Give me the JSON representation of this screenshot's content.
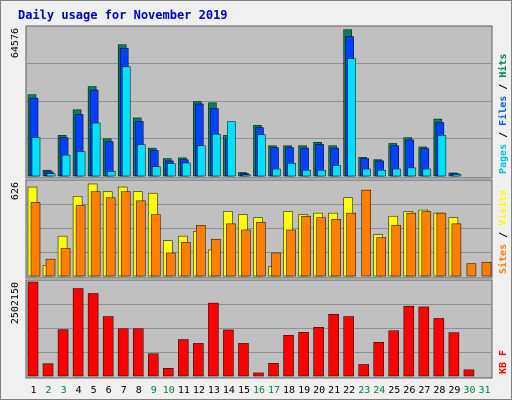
{
  "chart_data": {
    "type": "bar",
    "title": "Daily usage for November 2019",
    "categories": [
      "1",
      "2",
      "3",
      "4",
      "5",
      "6",
      "7",
      "8",
      "9",
      "10",
      "11",
      "12",
      "13",
      "14",
      "15",
      "16",
      "17",
      "18",
      "19",
      "20",
      "21",
      "22",
      "23",
      "24",
      "25",
      "26",
      "27",
      "28",
      "29",
      "30",
      "31"
    ],
    "weekend_days": [
      "2",
      "3",
      "9",
      "10",
      "16",
      "17",
      "23",
      "24",
      "30",
      "31"
    ],
    "panels": [
      {
        "name": "hits-files-pages",
        "ymax": 64576,
        "ymax_label": "64576",
        "axis_labels": [
          {
            "text": "Pages",
            "color": "#00c0e0"
          },
          {
            "text": "Files",
            "color": "#0060ff"
          },
          {
            "text": "Hits",
            "color": "#008060"
          }
        ],
        "series": [
          {
            "name": "Hits",
            "color": "#008060",
            "values": [
              35000,
              2500,
              17500,
              28500,
              38500,
              16000,
              56500,
              25000,
              12000,
              7500,
              7800,
              32000,
              31500,
              17500,
              1500,
              21800,
              13000,
              13000,
              13000,
              14500,
              13000,
              63000,
              8000,
              7000,
              14000,
              16500,
              12500,
              24500,
              1300,
              0,
              0
            ]
          },
          {
            "name": "Files",
            "color": "#0040ff",
            "values": [
              33500,
              1800,
              16500,
              26500,
              37000,
              14800,
              55000,
              23500,
              11000,
              6500,
              7000,
              31000,
              29000,
              16000,
              1100,
              20800,
              12200,
              12200,
              12000,
              13600,
              12000,
              60000,
              7500,
              6500,
              13000,
              15500,
              11800,
              23000,
              1100,
              0,
              0
            ]
          },
          {
            "name": "Pages",
            "color": "#00e0ff",
            "values": [
              16500,
              1000,
              9000,
              10500,
              22800,
              2000,
              47000,
              13500,
              4000,
              5300,
              5600,
              13000,
              18000,
              23400,
              500,
              17800,
              3000,
              5500,
              2500,
              2500,
              4500,
              50500,
              3000,
              2500,
              3000,
              3500,
              3000,
              17500,
              700,
              0,
              0
            ]
          }
        ]
      },
      {
        "name": "visits-sites",
        "ymax": 626,
        "ymax_label": "626",
        "axis_labels": [
          {
            "text": "Sites",
            "color": "#ff8000"
          },
          {
            "text": "Visits",
            "color": "#ffff00"
          }
        ],
        "series": [
          {
            "name": "Visits",
            "color": "#ffff00",
            "values": [
              580,
              70,
              260,
              520,
              600,
              550,
              580,
              550,
              540,
              230,
              260,
              290,
              170,
              420,
              400,
              380,
              60,
              420,
              400,
              410,
              410,
              510,
              0,
              270,
              390,
              420,
              430,
              410,
              380,
              0,
              0
            ]
          },
          {
            "name": "Sites",
            "color": "#ff8000",
            "values": [
              480,
              110,
              180,
              460,
              550,
              510,
              550,
              490,
              400,
              150,
              220,
              330,
              240,
              340,
              300,
              350,
              150,
              300,
              390,
              380,
              370,
              410,
              560,
              250,
              330,
              410,
              420,
              410,
              340,
              80,
              90
            ]
          }
        ]
      },
      {
        "name": "kbytes",
        "ymax": 2502150,
        "ymax_label": "2502150",
        "axis_labels": [
          {
            "text": "KB F",
            "color": "#ff0000"
          }
        ],
        "series": [
          {
            "name": "KB F",
            "color": "#ff0000",
            "values": [
              2450000,
              320000,
              1210000,
              2280000,
              2150000,
              1550000,
              1230000,
              1230000,
              580000,
              200000,
              950000,
              850000,
              1900000,
              1200000,
              850000,
              80000,
              330000,
              1060000,
              1140000,
              1270000,
              1610000,
              1550000,
              300000,
              880000,
              1180000,
              1820000,
              1800000,
              1500000,
              1130000,
              160000,
              0
            ]
          }
        ]
      }
    ]
  },
  "colors": {
    "frame_bg": "#f0f0f0",
    "plot_bg": "#c0c0c0",
    "grid": "#909090",
    "title": "#0000c0",
    "weekday_tick": "#000000",
    "weekend_tick": "#008040"
  }
}
